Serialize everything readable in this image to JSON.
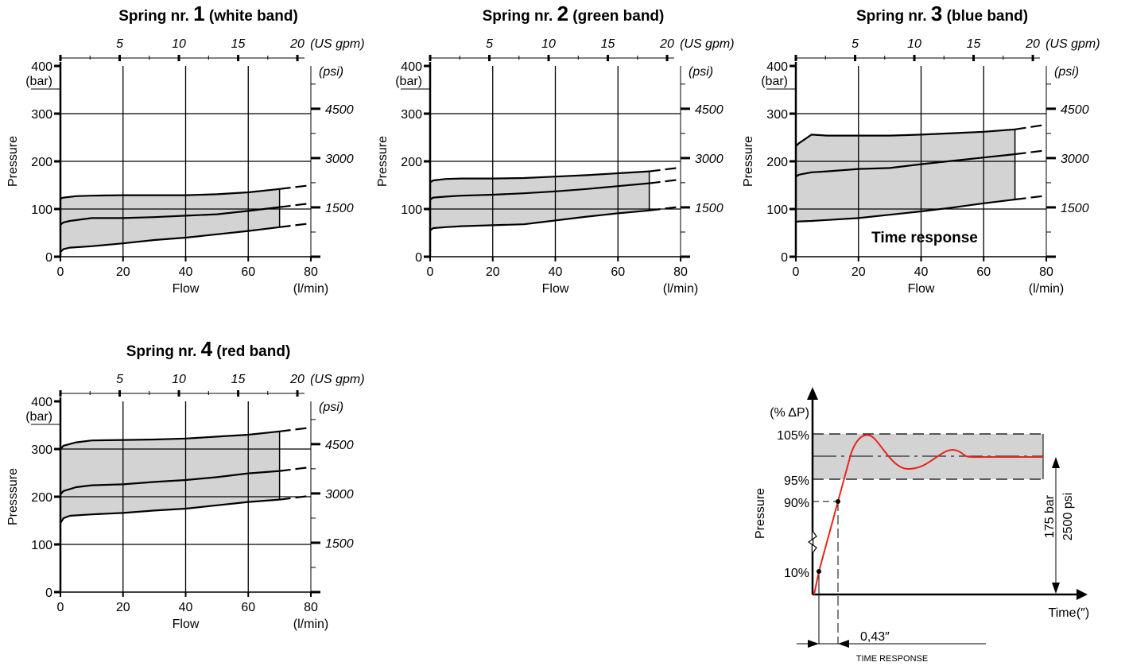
{
  "chart_data": [
    {
      "type": "area",
      "title_prefix": "Spring nr.",
      "title_number": "1",
      "title_suffix": "(white band)",
      "xlabel": "Flow",
      "xunit": "(l/min)",
      "ylabel": "Pressure",
      "yunit": "(bar)",
      "xlim": [
        0,
        80
      ],
      "ylim": [
        0,
        400
      ],
      "x_ticks": [
        "0",
        "20",
        "40",
        "60",
        "80"
      ],
      "y_ticks": [
        "0",
        "100",
        "200",
        "300",
        "400"
      ],
      "top_axis": {
        "ticks": [
          "5",
          "10",
          "15",
          "20"
        ],
        "unit": "(US gpm)"
      },
      "right_axis": {
        "ticks": [
          "1500",
          "3000",
          "4500"
        ],
        "unit": "(psi)"
      },
      "series": [
        {
          "x": [
            0,
            1,
            5,
            10,
            20,
            30,
            40,
            50,
            60,
            70
          ],
          "y": [
            122,
            124,
            127,
            128,
            129,
            129,
            129,
            131,
            135,
            142
          ],
          "dashed_ext": [
            [
              70,
              142
            ],
            [
              80,
              150
            ]
          ]
        },
        {
          "x": [
            0,
            1,
            3,
            10,
            20,
            30,
            40,
            50,
            60,
            70
          ],
          "y": [
            67,
            72,
            75,
            81,
            81,
            83,
            86,
            89,
            96,
            104
          ],
          "dashed_ext": [
            [
              70,
              104
            ],
            [
              80,
              112
            ]
          ]
        },
        {
          "x": [
            0,
            1,
            3,
            10,
            20,
            30,
            40,
            50,
            60,
            70
          ],
          "y": [
            10,
            16,
            19,
            22,
            28,
            35,
            40,
            47,
            54,
            62
          ],
          "dashed_ext": [
            [
              70,
              62
            ],
            [
              80,
              70
            ]
          ]
        }
      ]
    },
    {
      "type": "area",
      "title_prefix": "Spring nr.",
      "title_number": "2",
      "title_suffix": "(green band)",
      "xlabel": "Flow",
      "xunit": "(l/min)",
      "ylabel": "Pressure",
      "yunit": "(bar)",
      "xlim": [
        0,
        80
      ],
      "ylim": [
        0,
        400
      ],
      "x_ticks": [
        "0",
        "20",
        "40",
        "60",
        "80"
      ],
      "y_ticks": [
        "0",
        "100",
        "200",
        "300",
        "400"
      ],
      "top_axis": {
        "ticks": [
          "5",
          "10",
          "15",
          "20"
        ],
        "unit": "(US gpm)"
      },
      "right_axis": {
        "ticks": [
          "1500",
          "3000",
          "4500"
        ],
        "unit": "(psi)"
      },
      "series": [
        {
          "x": [
            0,
            1,
            5,
            10,
            20,
            30,
            40,
            50,
            60,
            70
          ],
          "y": [
            156,
            160,
            163,
            164,
            164,
            165,
            168,
            171,
            175,
            179
          ],
          "dashed_ext": [
            [
              70,
              179
            ],
            [
              80,
              187
            ]
          ]
        },
        {
          "x": [
            0,
            1,
            5,
            10,
            20,
            30,
            40,
            50,
            60,
            70
          ],
          "y": [
            120,
            124,
            126,
            128,
            130,
            133,
            137,
            142,
            148,
            154
          ],
          "dashed_ext": [
            [
              70,
              154
            ],
            [
              80,
              162
            ]
          ]
        },
        {
          "x": [
            0,
            1,
            5,
            10,
            20,
            30,
            40,
            50,
            60,
            70
          ],
          "y": [
            55,
            60,
            62,
            64,
            66,
            68,
            76,
            84,
            91,
            97
          ],
          "dashed_ext": [
            [
              70,
              97
            ],
            [
              80,
              105
            ]
          ]
        }
      ]
    },
    {
      "type": "area",
      "title_prefix": "Spring nr.",
      "title_number": "3",
      "title_suffix": "(blue band)",
      "xlabel": "Flow",
      "xunit": "(l/min)",
      "ylabel": "Pressure",
      "yunit": "(bar)",
      "xlim": [
        0,
        80
      ],
      "ylim": [
        0,
        400
      ],
      "x_ticks": [
        "0",
        "20",
        "40",
        "60",
        "80"
      ],
      "y_ticks": [
        "0",
        "100",
        "200",
        "300",
        "400"
      ],
      "top_axis": {
        "ticks": [
          "5",
          "10",
          "15",
          "20"
        ],
        "unit": "(US gpm)"
      },
      "right_axis": {
        "ticks": [
          "1500",
          "3000",
          "4500"
        ],
        "unit": "(psi)"
      },
      "series": [
        {
          "x": [
            0,
            1,
            5,
            10,
            20,
            30,
            40,
            50,
            60,
            70
          ],
          "y": [
            232,
            238,
            256,
            254,
            254,
            254,
            256,
            259,
            262,
            267
          ],
          "dashed_ext": [
            [
              70,
              267
            ],
            [
              80,
              277
            ]
          ]
        },
        {
          "x": [
            0,
            1,
            5,
            10,
            20,
            30,
            40,
            50,
            60,
            70
          ],
          "y": [
            168,
            172,
            177,
            179,
            184,
            186,
            194,
            201,
            208,
            215
          ],
          "dashed_ext": [
            [
              70,
              215
            ],
            [
              80,
              223
            ]
          ]
        },
        {
          "x": [
            0,
            1,
            5,
            10,
            20,
            30,
            40,
            50,
            60,
            70
          ],
          "y": [
            73,
            74,
            75,
            77,
            81,
            88,
            95,
            103,
            112,
            120
          ],
          "dashed_ext": [
            [
              70,
              120
            ],
            [
              80,
              128
            ]
          ]
        }
      ]
    },
    {
      "type": "area",
      "title_prefix": "Spring nr.",
      "title_number": "4",
      "title_suffix": "(red band)",
      "xlabel": "Flow",
      "xunit": "(l/min)",
      "ylabel": "Presssure",
      "yunit": "(bar)",
      "xlim": [
        0,
        80
      ],
      "ylim": [
        0,
        400
      ],
      "x_ticks": [
        "0",
        "20",
        "40",
        "60",
        "80"
      ],
      "y_ticks": [
        "0",
        "100",
        "200",
        "300",
        "400"
      ],
      "top_axis": {
        "ticks": [
          "5",
          "10",
          "15",
          "20"
        ],
        "unit": "(US gpm)"
      },
      "right_axis": {
        "ticks": [
          "1500",
          "3000",
          "4500"
        ],
        "unit": "(psi)"
      },
      "series": [
        {
          "x": [
            0,
            1,
            5,
            10,
            20,
            30,
            40,
            50,
            60,
            70
          ],
          "y": [
            300,
            307,
            314,
            318,
            319,
            320,
            322,
            326,
            330,
            337
          ],
          "dashed_ext": [
            [
              70,
              337
            ],
            [
              80,
              345
            ]
          ]
        },
        {
          "x": [
            0,
            1,
            5,
            10,
            20,
            30,
            40,
            50,
            60,
            70
          ],
          "y": [
            205,
            212,
            220,
            224,
            226,
            231,
            235,
            241,
            249,
            254
          ],
          "dashed_ext": [
            [
              70,
              254
            ],
            [
              80,
              262
            ]
          ]
        },
        {
          "x": [
            0,
            1,
            3,
            10,
            20,
            30,
            40,
            50,
            60,
            70
          ],
          "y": [
            145,
            155,
            160,
            163,
            166,
            171,
            175,
            182,
            189,
            194
          ],
          "dashed_ext": [
            [
              70,
              194
            ],
            [
              80,
              202
            ]
          ]
        }
      ]
    },
    {
      "type": "line",
      "title": "Time response",
      "ylabel": "Pressure",
      "yunit": "(% ΔP)",
      "xlabel": "Time",
      "xunit": "(″)",
      "y_labels": [
        "105%",
        "95%",
        "90%",
        "10%"
      ],
      "band_right_label_1": "175 bar",
      "band_right_label_2": "2500 psi",
      "time_value": "0,43″",
      "time_caption": "TIME RESPONSE",
      "line_color": "#e8261a"
    }
  ]
}
